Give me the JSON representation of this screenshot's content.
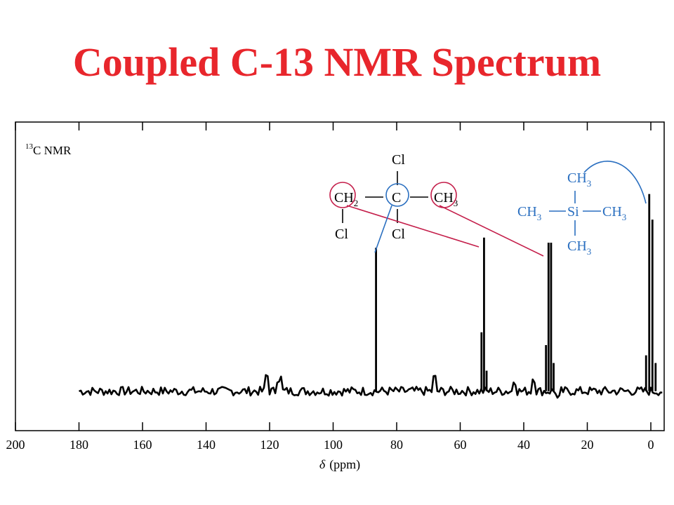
{
  "title": "Coupled C-13 NMR Spectrum",
  "colors": {
    "title": "#e8262c",
    "axis": "#000000",
    "spectrum": "#000000",
    "tms": "#2a6fc0",
    "sample": "#c41e4a"
  },
  "chart_data": {
    "type": "line",
    "title": "Coupled C-13 NMR Spectrum",
    "xlabel": "δ (ppm)",
    "xlabel_parts": {
      "symbol": "δ",
      "unit": "(ppm)"
    },
    "xlim": [
      200,
      -5
    ],
    "x_reversed": true,
    "ylim": [
      0,
      1
    ],
    "grid": false,
    "x_ticks": [
      200,
      180,
      160,
      140,
      120,
      100,
      80,
      60,
      40,
      20,
      0
    ],
    "annotation_nmr": {
      "superscript": "13",
      "text": "C NMR"
    },
    "baseline_range_ppm": [
      180,
      -4
    ],
    "baseline_level": 0.02,
    "noise_bumps": [
      {
        "x": 121,
        "h": 0.06
      },
      {
        "x": 117,
        "h": 0.05
      },
      {
        "x": 68,
        "h": 0.05
      },
      {
        "x": 43,
        "h": 0.04
      },
      {
        "x": 37,
        "h": 0.05
      },
      {
        "x": 29,
        "h": -0.03
      }
    ],
    "peaks": [
      {
        "x": 86.5,
        "h": 0.58,
        "label": "C"
      },
      {
        "x": 53.3,
        "h": 0.25,
        "label": "CH2 multiplet"
      },
      {
        "x": 52.5,
        "h": 0.62,
        "label": "CH2 multiplet"
      },
      {
        "x": 51.7,
        "h": 0.1,
        "label": "CH2 multiplet"
      },
      {
        "x": 33.0,
        "h": 0.2,
        "label": "CH3 multiplet"
      },
      {
        "x": 32.2,
        "h": 0.6,
        "label": "CH3 multiplet"
      },
      {
        "x": 31.4,
        "h": 0.6,
        "label": "CH3 multiplet"
      },
      {
        "x": 30.6,
        "h": 0.13,
        "label": "CH3 multiplet"
      },
      {
        "x": 1.5,
        "h": 0.16,
        "label": "TMS multiplet"
      },
      {
        "x": 0.5,
        "h": 0.79,
        "label": "TMS multiplet"
      },
      {
        "x": -0.5,
        "h": 0.69,
        "label": "TMS multiplet"
      },
      {
        "x": -1.5,
        "h": 0.13,
        "label": "TMS multiplet"
      }
    ],
    "structures": {
      "sample": {
        "cl_top": "Cl",
        "ch2": "CH",
        "ch2_sub": "2",
        "c": "C",
        "ch3": "CH",
        "ch3_sub": "3",
        "cl_left": "Cl",
        "cl_bottom": "Cl"
      },
      "tms": {
        "ch3_top": "CH",
        "ch3_top_sub": "3",
        "ch3_left": "CH",
        "ch3_left_sub": "3",
        "si": "Si",
        "ch3_right": "CH",
        "ch3_right_sub": "3",
        "ch3_bottom": "CH",
        "ch3_bottom_sub": "3"
      }
    }
  }
}
